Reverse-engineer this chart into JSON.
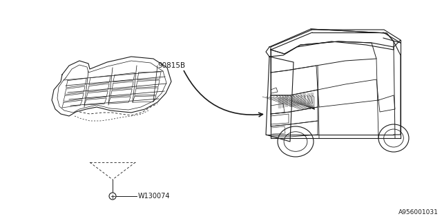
{
  "background_color": "#ffffff",
  "line_color": "#1a1a1a",
  "part_label": "90815B",
  "fastener_label": "W130074",
  "diagram_id": "A956001031",
  "fig_width": 6.4,
  "fig_height": 3.2,
  "dpi": 100
}
